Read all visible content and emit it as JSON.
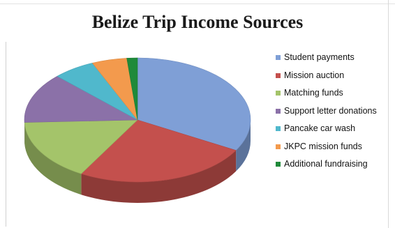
{
  "chart_data": {
    "type": "pie",
    "title": "Belize Trip Income Sources",
    "categories": [
      "Student payments",
      "Mission auction",
      "Matching funds",
      "Support letter donations",
      "Pancake car wash",
      "JKPC mission funds",
      "Additional fundraising"
    ],
    "values": [
      33,
      25,
      16,
      13,
      6,
      5,
      1.5
    ],
    "colors": [
      "#7f9fd6",
      "#c4504d",
      "#a4c46a",
      "#8b71a8",
      "#50b8cc",
      "#f39a4d",
      "#1f8a3a"
    ],
    "legend_position": "right",
    "style": "3d"
  }
}
